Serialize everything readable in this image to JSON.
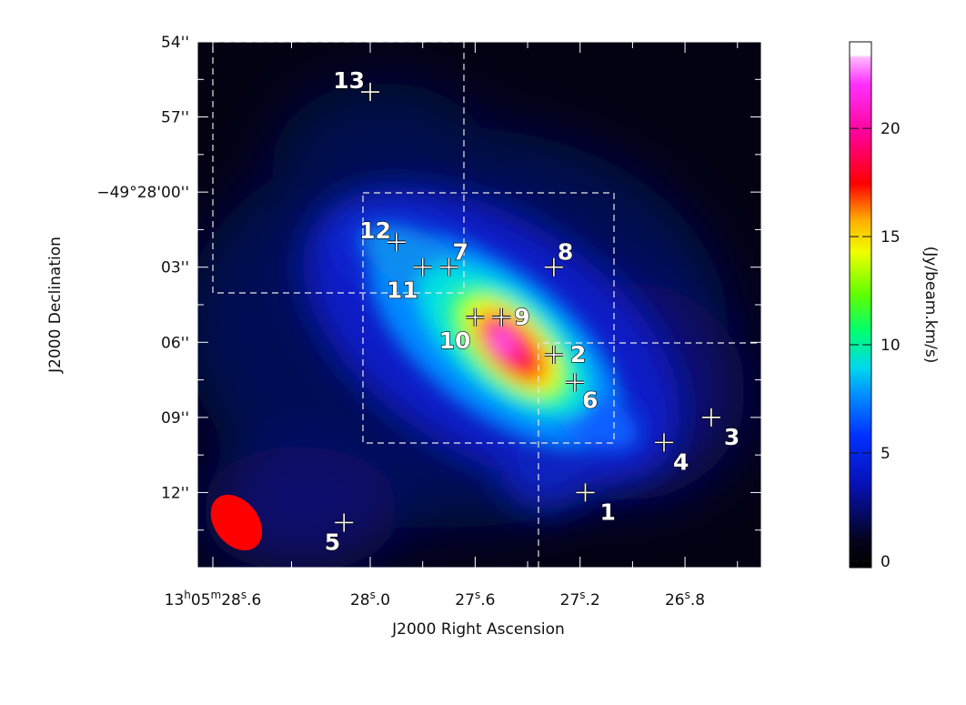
{
  "chart_data": {
    "type": "heatmap",
    "title": "",
    "xlabel": "J2000 Right Ascension",
    "ylabel": "J2000 Declination",
    "x_ticks": [
      {
        "ra_s": 28.6,
        "parts": [
          "13",
          "h",
          "05",
          "m",
          "28",
          "s",
          ".6"
        ]
      },
      {
        "ra_s": 28.0,
        "parts": [
          "",
          "",
          "",
          "",
          "28",
          "s",
          ".0"
        ]
      },
      {
        "ra_s": 27.6,
        "parts": [
          "",
          "",
          "",
          "",
          "27",
          "s",
          ".6"
        ]
      },
      {
        "ra_s": 27.2,
        "parts": [
          "",
          "",
          "",
          "",
          "27",
          "s",
          ".2"
        ]
      },
      {
        "ra_s": 26.8,
        "parts": [
          "",
          "",
          "",
          "",
          "26",
          "s",
          ".8"
        ]
      }
    ],
    "y_ticks": [
      {
        "dec_s": 54,
        "label": "54''"
      },
      {
        "dec_s": 57,
        "label": "57''"
      },
      {
        "dec_s": 60,
        "label": "−49°28'00''"
      },
      {
        "dec_s": 63,
        "label": "03''"
      },
      {
        "dec_s": 66,
        "label": "06''"
      },
      {
        "dec_s": 69,
        "label": "09''"
      },
      {
        "dec_s": 72,
        "label": "12''"
      }
    ],
    "xlim_ra_s": [
      28.6,
      26.45
    ],
    "ylim_dec_arcsec": [
      54,
      75
    ],
    "colorbar": {
      "label": "(Jy/beam.km/s)",
      "min": -0.3,
      "max": 24,
      "ticks": [
        0,
        5,
        10,
        15,
        20
      ]
    },
    "sources": [
      {
        "id": "1",
        "ra_s": 27.18,
        "dec_s": 72.0
      },
      {
        "id": "2",
        "ra_s": 27.3,
        "dec_s": 66.5
      },
      {
        "id": "3",
        "ra_s": 26.7,
        "dec_s": 69.0
      },
      {
        "id": "4",
        "ra_s": 26.88,
        "dec_s": 70.0
      },
      {
        "id": "5",
        "ra_s": 28.1,
        "dec_s": 73.2
      },
      {
        "id": "6",
        "ra_s": 27.22,
        "dec_s": 67.6
      },
      {
        "id": "7",
        "ra_s": 27.7,
        "dec_s": 63.0
      },
      {
        "id": "8",
        "ra_s": 27.3,
        "dec_s": 63.0
      },
      {
        "id": "9",
        "ra_s": 27.5,
        "dec_s": 65.0
      },
      {
        "id": "10",
        "ra_s": 27.6,
        "dec_s": 65.0
      },
      {
        "id": "11",
        "ra_s": 27.8,
        "dec_s": 63.0
      },
      {
        "id": "12",
        "ra_s": 27.9,
        "dec_s": 62.0
      },
      {
        "id": "13",
        "ra_s": 28.0,
        "dec_s": 56.0
      }
    ],
    "beam": {
      "ra_s": 28.51,
      "dec_s": 73.2,
      "color": "#ff0000"
    },
    "colors": {
      "frame": "#ffffff",
      "box": "#e8e8e8"
    }
  }
}
